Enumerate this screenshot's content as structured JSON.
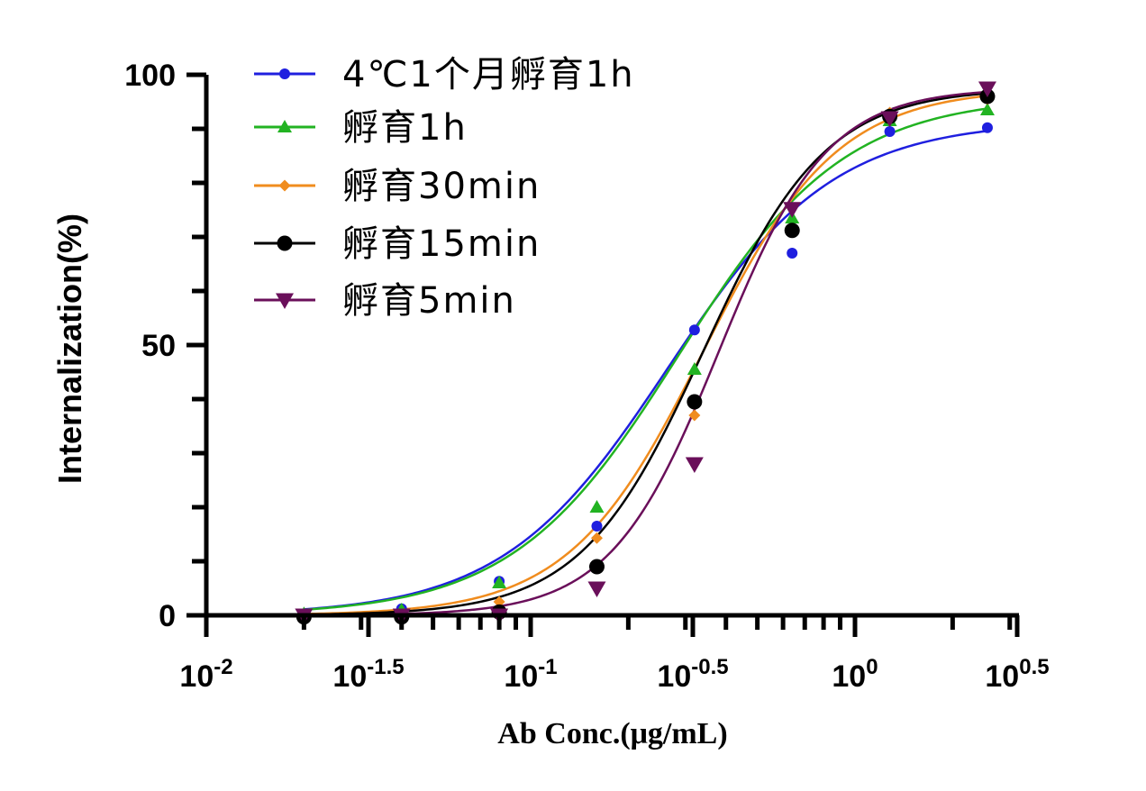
{
  "chart_data": {
    "type": "scatter",
    "title": "",
    "xlabel": "Ab Conc.(μg/mL)",
    "ylabel": "Internalization(%)",
    "x_scale": "log10",
    "xlim": [
      0.01,
      3.1623
    ],
    "ylim": [
      0,
      100
    ],
    "x_ticks": [
      {
        "value": 0.01,
        "base": "10",
        "exp": "-2"
      },
      {
        "value": 0.031623,
        "base": "10",
        "exp": "-1.5"
      },
      {
        "value": 0.1,
        "base": "10",
        "exp": "-1"
      },
      {
        "value": 0.31623,
        "base": "10",
        "exp": "-0.5"
      },
      {
        "value": 1,
        "base": "10",
        "exp": "0"
      },
      {
        "value": 3.1623,
        "base": "10",
        "exp": "0.5"
      }
    ],
    "y_ticks": [
      "0",
      "50",
      "100"
    ],
    "legend_position": "top-left",
    "x": [
      0.02,
      0.04,
      0.08,
      0.16,
      0.32,
      0.64,
      1.28,
      2.56
    ],
    "series": [
      {
        "name": "4℃1个月孵育1h",
        "color": "#1f1fdf",
        "marker": "circle",
        "values": [
          0.2,
          1.2,
          6.3,
          16.5,
          52.8,
          67.0,
          89.5,
          90.2
        ]
      },
      {
        "name": "孵育1h",
        "color": "#22b322",
        "marker": "triangle-up",
        "values": [
          0.3,
          1.0,
          6.0,
          20.0,
          45.5,
          73.5,
          91.5,
          93.5
        ]
      },
      {
        "name": "孵育30min",
        "color": "#f08c1e",
        "marker": "diamond",
        "values": [
          -0.2,
          0.0,
          2.5,
          14.3,
          37.0,
          71.0,
          93.0,
          95.5
        ]
      },
      {
        "name": "孵育15min",
        "color": "#000000",
        "marker": "circle-large",
        "values": [
          -0.3,
          -0.3,
          0.6,
          9.0,
          39.5,
          71.2,
          92.3,
          96.0
        ]
      },
      {
        "name": "孵育5min",
        "color": "#6a0f5a",
        "marker": "triangle-down",
        "values": [
          0.0,
          0.0,
          0.0,
          5.0,
          28.0,
          75.2,
          92.0,
          97.5
        ]
      }
    ],
    "fits": [
      {
        "bottom": 0,
        "top": 91.5,
        "ec50": 0.265,
        "hill": 1.7
      },
      {
        "bottom": 0,
        "top": 96.0,
        "ec50": 0.285,
        "hill": 1.7
      },
      {
        "bottom": 0,
        "top": 97.5,
        "ec50": 0.34,
        "hill": 2.1
      },
      {
        "bottom": 0,
        "top": 97.5,
        "ec50": 0.34,
        "hill": 2.3
      },
      {
        "bottom": 0,
        "top": 97.5,
        "ec50": 0.38,
        "hill": 2.6
      }
    ]
  }
}
